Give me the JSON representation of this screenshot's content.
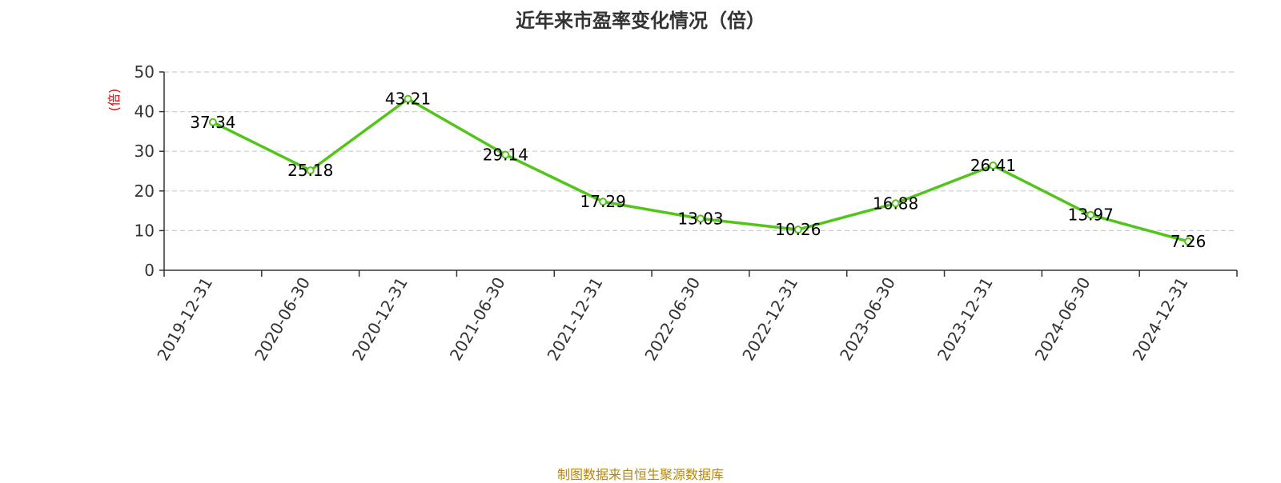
{
  "chart_data": {
    "type": "line",
    "title": "近年来市盈率变化情况（倍）",
    "ylabel": "(倍)",
    "xlabel": "",
    "categories": [
      "2019-12-31",
      "2020-06-30",
      "2020-12-31",
      "2021-06-30",
      "2021-12-31",
      "2022-06-30",
      "2022-12-31",
      "2023-06-30",
      "2023-12-31",
      "2024-06-30",
      "2024-12-31"
    ],
    "series": [
      {
        "values": [
          37.34,
          25.18,
          43.21,
          29.14,
          17.29,
          13.03,
          10.26,
          16.88,
          26.41,
          13.97,
          7.26
        ],
        "data_labels": [
          "37.34",
          "25.18",
          "43.21",
          "29.14",
          "17.29",
          "13.03",
          "10.26",
          "16.88",
          "26.41",
          "13.97",
          "7.26"
        ]
      }
    ],
    "ylim": [
      0,
      50
    ],
    "y_ticks": [
      "0",
      "10",
      "20",
      "30",
      "40",
      "50"
    ],
    "grid": "horizontal-dashed",
    "legend": "none"
  },
  "source": "制图数据来自恒生聚源数据库",
  "colors": {
    "line": "#52c41a",
    "unit_label": "#e60000",
    "source_text": "#b8860b",
    "grid": "#cccccc",
    "axis": "#333333"
  }
}
